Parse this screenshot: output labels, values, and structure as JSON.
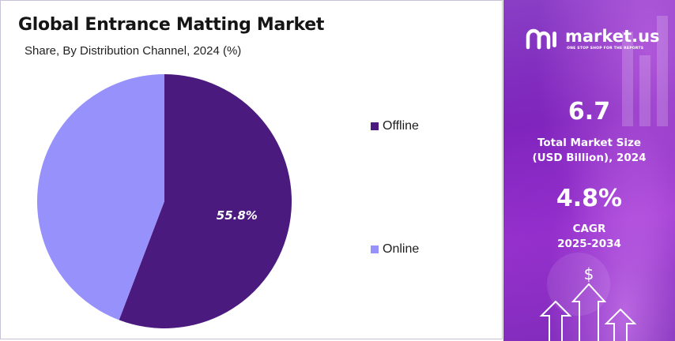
{
  "chart_data": {
    "type": "pie",
    "title": "Global Entrance Matting Market",
    "subtitle": "Share, By Distribution Channel, 2024 (%)",
    "slices": [
      {
        "name": "Offline",
        "value": 55.8,
        "label": "55.8%",
        "color": "#4b1a7f"
      },
      {
        "name": "Online",
        "value": 44.2,
        "label": "",
        "color": "#9791fb"
      }
    ],
    "legend_position": "right"
  },
  "brand": {
    "name": "market.us",
    "tagline": "ONE STOP SHOP FOR THE REPORTS"
  },
  "stats": {
    "market_size_value": "6.7",
    "market_size_label_line1": "Total Market Size",
    "market_size_label_line2": "(USD Billion), 2024",
    "cagr_value": "4.8%",
    "cagr_label_line1": "CAGR",
    "cagr_label_line2": "2025-2034"
  },
  "icons": {
    "logo": "market-us-logo-icon",
    "currency": "dollar-icon",
    "growth": "up-arrow-icon"
  },
  "colors": {
    "offline": "#4b1a7f",
    "online": "#9791fb",
    "panel_purple": "#8a2fc4"
  }
}
